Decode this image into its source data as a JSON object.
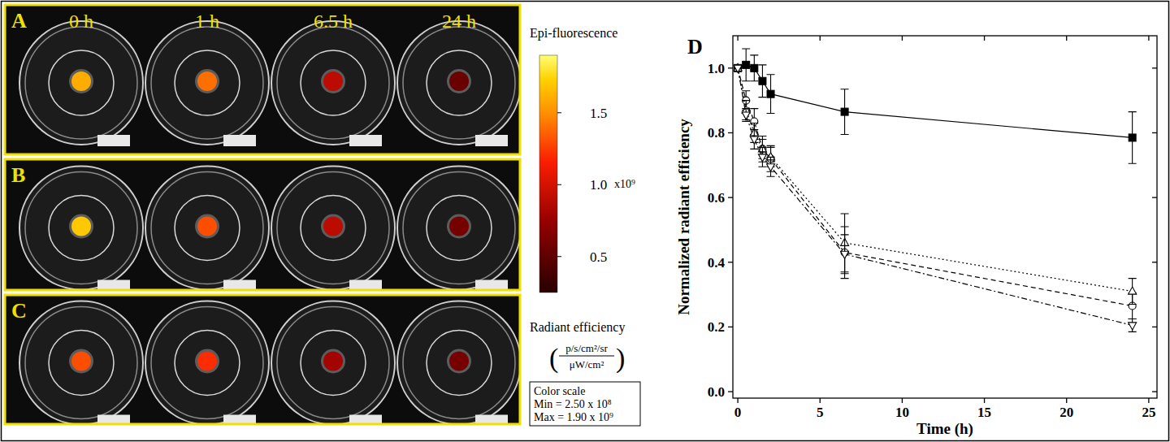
{
  "chart_data": {
    "type": "line",
    "title": "D",
    "x_label": "Time (h)",
    "y_label": "Normalized radiant efficiency",
    "x": [
      0,
      0.5,
      1,
      1.5,
      2,
      6.5,
      24
    ],
    "series": [
      {
        "color": "#000000",
        "marker": "square",
        "line_style": "solid",
        "values": [
          1.0,
          1.01,
          1.0,
          0.96,
          0.92,
          0.865,
          0.785
        ],
        "errors": [
          0,
          0.05,
          0.04,
          0.05,
          0.06,
          0.07,
          0.08
        ]
      },
      {
        "color": "#000000",
        "marker": "circle",
        "line_style": "dashed",
        "values": [
          1.0,
          0.9,
          0.835,
          0.75,
          0.72,
          0.43,
          0.265
        ],
        "errors": [
          0,
          0.03,
          0.04,
          0.04,
          0.04,
          0.08,
          0.04
        ]
      },
      {
        "color": "#000000",
        "marker": "triangle-up",
        "line_style": "dotted",
        "values": [
          1.0,
          0.87,
          0.8,
          0.75,
          0.725,
          0.46,
          0.31
        ],
        "errors": [
          0,
          0.03,
          0.03,
          0.03,
          0.03,
          0.09,
          0.04
        ]
      },
      {
        "color": "#000000",
        "marker": "triangle-down",
        "line_style": "dashdot",
        "values": [
          1.0,
          0.855,
          0.78,
          0.725,
          0.695,
          0.425,
          0.205
        ],
        "errors": [
          0,
          0.02,
          0.03,
          0.03,
          0.03,
          0.06,
          0.02
        ]
      }
    ],
    "xlim": [
      -0.3,
      25.5
    ],
    "xticks": [
      0,
      5,
      10,
      15,
      20,
      25
    ],
    "ylim": [
      -0.02,
      1.1
    ],
    "yticks": [
      {
        "value": 0,
        "label": "0.0"
      },
      {
        "value": 0.2,
        "label": "0.2"
      },
      {
        "value": 0.4,
        "label": "0.4"
      },
      {
        "value": 0.6,
        "label": "0.6"
      },
      {
        "value": 0.8,
        "label": "0.8"
      },
      {
        "value": 1,
        "label": "1.0"
      }
    ],
    "grid": false
  },
  "images": {
    "times": [
      "0 h",
      "1 h",
      "6.5 h",
      "24 h"
    ],
    "panels": [
      {
        "letter": "A",
        "spots": [
          1.6,
          1.4,
          0.9,
          0.55
        ]
      },
      {
        "letter": "B",
        "spots": [
          1.7,
          1.3,
          0.9,
          0.6
        ]
      },
      {
        "letter": "C",
        "spots": [
          1.3,
          1.2,
          0.8,
          0.6
        ]
      }
    ]
  },
  "colorbar": {
    "title": "Epi-fluorescence",
    "label": "Radiant efficiency",
    "unit_numerator": "p/s/cm²/sr",
    "unit_denominator": "μW/cm²",
    "multiplier": "x10⁹",
    "range": [
      0.25,
      1.9
    ],
    "ticks": [
      {
        "value": 0.5,
        "label": "0.5"
      },
      {
        "value": 1,
        "label": "1.0"
      },
      {
        "value": 1.5,
        "label": "1.5"
      }
    ],
    "box": [
      "Color scale",
      "Min = 2.50 x 10⁸",
      "Max = 1.90 x 10⁹"
    ]
  }
}
